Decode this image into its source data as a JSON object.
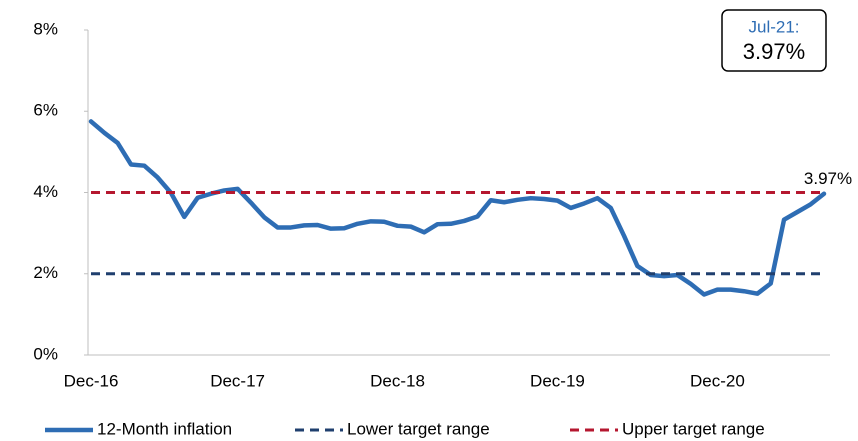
{
  "chart_data": {
    "type": "line",
    "categories": [
      "Dec-16",
      null,
      null,
      null,
      null,
      null,
      null,
      null,
      null,
      null,
      null,
      "Dec-17",
      null,
      null,
      null,
      null,
      null,
      null,
      null,
      null,
      null,
      null,
      null,
      "Dec-18",
      null,
      null,
      null,
      null,
      null,
      null,
      null,
      null,
      null,
      null,
      null,
      "Dec-19",
      null,
      null,
      null,
      null,
      null,
      null,
      null,
      null,
      null,
      null,
      null,
      "Dec-20",
      null,
      null,
      null,
      null,
      null,
      null,
      null,
      null
    ],
    "series": [
      {
        "name": "12-Month inflation",
        "color": "#2e6db4",
        "dash": false,
        "values": [
          5.75,
          5.47,
          5.22,
          4.69,
          4.66,
          4.37,
          3.99,
          3.4,
          3.87,
          3.97,
          4.05,
          4.09,
          3.75,
          3.39,
          3.14,
          3.14,
          3.19,
          3.2,
          3.11,
          3.12,
          3.23,
          3.29,
          3.28,
          3.18,
          3.16,
          3.02,
          3.22,
          3.23,
          3.3,
          3.41,
          3.81,
          3.76,
          3.82,
          3.86,
          3.84,
          3.8,
          3.62,
          3.73,
          3.86,
          3.62,
          2.93,
          2.19,
          1.97,
          1.94,
          1.97,
          1.75,
          1.49,
          1.61,
          1.61,
          1.57,
          1.51,
          1.76,
          3.33,
          3.52,
          3.71,
          3.97
        ],
        "value_labels": [
          null,
          null,
          null,
          null,
          null,
          null,
          null,
          null,
          null,
          null,
          null,
          null,
          null,
          null,
          null,
          null,
          null,
          null,
          null,
          null,
          null,
          null,
          null,
          null,
          null,
          null,
          null,
          null,
          null,
          null,
          null,
          null,
          null,
          null,
          null,
          null,
          null,
          null,
          null,
          null,
          null,
          null,
          null,
          null,
          null,
          null,
          null,
          null,
          null,
          null,
          null,
          null,
          null,
          null,
          null,
          "3.97%"
        ]
      },
      {
        "name": "Lower target range",
        "color": "#1f3f6e",
        "dash": true,
        "values": [
          2,
          2,
          2,
          2,
          2,
          2,
          2,
          2,
          2,
          2,
          2,
          2,
          2,
          2,
          2,
          2,
          2,
          2,
          2,
          2,
          2,
          2,
          2,
          2,
          2,
          2,
          2,
          2,
          2,
          2,
          2,
          2,
          2,
          2,
          2,
          2,
          2,
          2,
          2,
          2,
          2,
          2,
          2,
          2,
          2,
          2,
          2,
          2,
          2,
          2,
          2,
          2,
          2,
          2,
          2,
          2
        ]
      },
      {
        "name": "Upper target range",
        "color": "#b5172f",
        "dash": true,
        "values": [
          4,
          4,
          4,
          4,
          4,
          4,
          4,
          4,
          4,
          4,
          4,
          4,
          4,
          4,
          4,
          4,
          4,
          4,
          4,
          4,
          4,
          4,
          4,
          4,
          4,
          4,
          4,
          4,
          4,
          4,
          4,
          4,
          4,
          4,
          4,
          4,
          4,
          4,
          4,
          4,
          4,
          4,
          4,
          4,
          4,
          4,
          4,
          4,
          4,
          4,
          4,
          4,
          4,
          4,
          4,
          4
        ]
      }
    ],
    "callout": {
      "title": "Jul-21:",
      "value": "3.97%"
    },
    "ylim": [
      0,
      8
    ],
    "yticks": [
      {
        "value": 0,
        "label": "0%"
      },
      {
        "value": 2,
        "label": "2%"
      },
      {
        "value": 4,
        "label": "4%"
      },
      {
        "value": 6,
        "label": "6%"
      },
      {
        "value": 8,
        "label": "8%"
      }
    ],
    "grid": false,
    "legend": "bottom"
  }
}
